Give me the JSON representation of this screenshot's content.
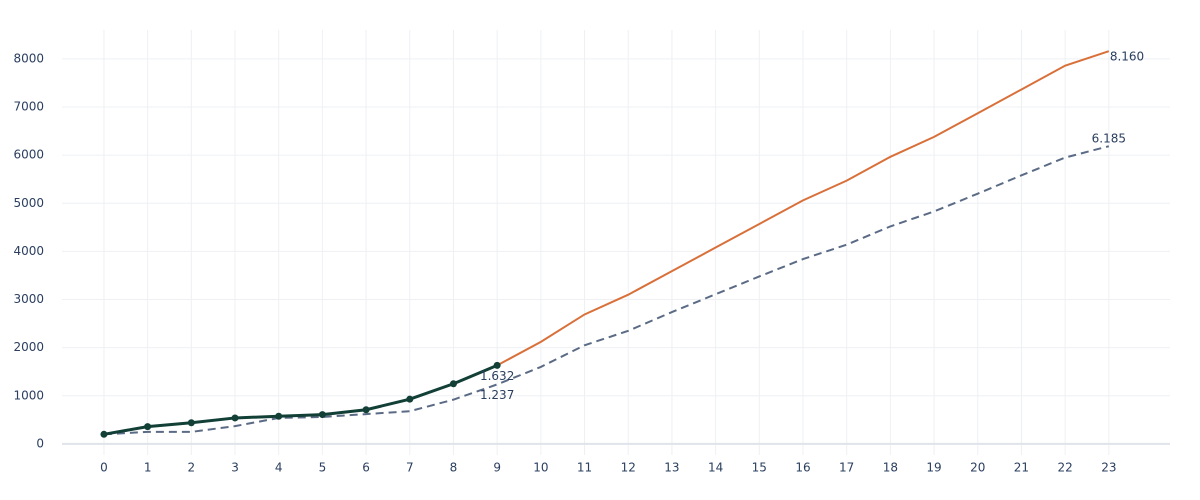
{
  "chart_data": {
    "type": "line",
    "xlim": [
      -0.96,
      24.4
    ],
    "ylim": [
      -230,
      8600
    ],
    "xticks": [
      0,
      1,
      2,
      3,
      4,
      5,
      6,
      7,
      8,
      9,
      10,
      11,
      12,
      13,
      14,
      15,
      16,
      17,
      18,
      19,
      20,
      21,
      22,
      23
    ],
    "yticks": [
      0,
      1000,
      2000,
      3000,
      4000,
      5000,
      6000,
      7000,
      8000
    ],
    "grid": true,
    "series": [
      {
        "color": "#5b6b85",
        "dash": true,
        "markers": false,
        "x": [
          0,
          1,
          2,
          3,
          4,
          5,
          6,
          7,
          8,
          9,
          10,
          11,
          12,
          13,
          14,
          15,
          16,
          17,
          18,
          19,
          20,
          21,
          22,
          23
        ],
        "values": [
          200,
          250,
          250,
          370,
          540,
          560,
          620,
          680,
          920,
          1237,
          1600,
          2050,
          2350,
          2740,
          3110,
          3480,
          3840,
          4140,
          4520,
          4830,
          5200,
          5580,
          5950,
          6185
        ],
        "value_labels": [
          null,
          null,
          null,
          null,
          null,
          null,
          null,
          null,
          null,
          "1.237",
          null,
          null,
          null,
          null,
          null,
          null,
          null,
          null,
          null,
          null,
          null,
          null,
          null,
          "6.185"
        ]
      },
      {
        "color": "#d9703a",
        "dash": false,
        "markers": false,
        "x": [
          9,
          10,
          11,
          12,
          13,
          14,
          15,
          16,
          17,
          18,
          19,
          20,
          21,
          22,
          23
        ],
        "values": [
          1632,
          2120,
          2690,
          3100,
          3590,
          4080,
          4570,
          5060,
          5470,
          5965,
          6380,
          6870,
          7365,
          7860,
          8160
        ],
        "value_labels": [
          null,
          null,
          null,
          null,
          null,
          null,
          null,
          null,
          null,
          null,
          null,
          null,
          null,
          null,
          "8.160"
        ]
      },
      {
        "color": "#123f36",
        "dash": false,
        "markers": true,
        "x": [
          0,
          1,
          2,
          3,
          4,
          5,
          6,
          7,
          8,
          9
        ],
        "values": [
          200,
          360,
          440,
          540,
          575,
          610,
          710,
          930,
          1250,
          1632
        ],
        "value_labels": [
          null,
          null,
          null,
          null,
          null,
          null,
          null,
          null,
          null,
          "1.632"
        ]
      }
    ]
  }
}
